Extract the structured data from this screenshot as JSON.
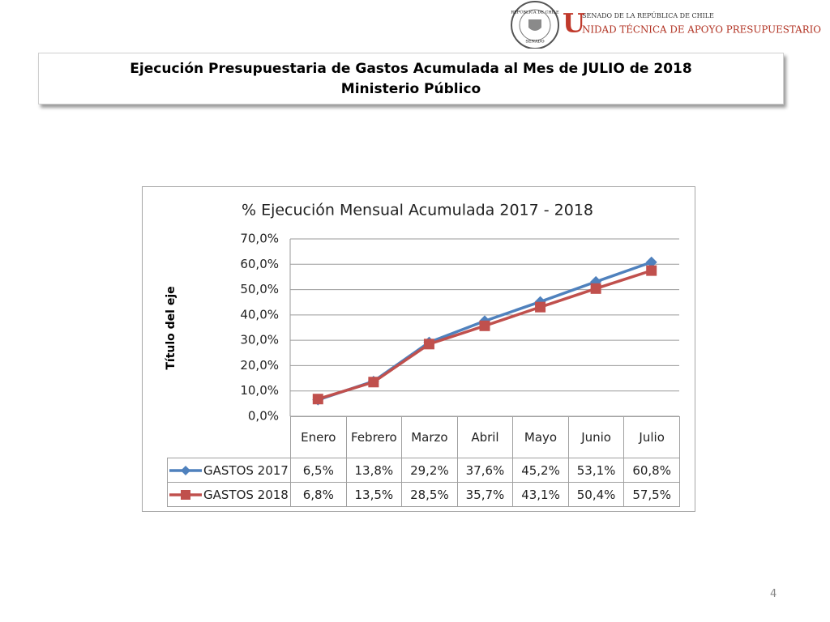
{
  "header": {
    "seal_top": "REPÚBLICA DE CHILE",
    "seal_bottom": "SENADO",
    "logo_small": "SENADO DE LA REPÚBLICA DE CHILE",
    "logo_initial": "U",
    "logo_rest": "NIDAD TÉCNICA DE APOYO PRESUPUESTARIO"
  },
  "slide_title": [
    "Ejecución Presupuestaria de Gastos Acumulada al Mes de JULIO de 2018",
    "Ministerio Público"
  ],
  "chart_data": {
    "type": "line",
    "title": "% Ejecución Mensual Acumulada 2017 - 2018",
    "y_label": "Título del eje",
    "categories": [
      "Enero",
      "Febrero",
      "Marzo",
      "Abril",
      "Mayo",
      "Junio",
      "Julio"
    ],
    "series": [
      {
        "name": "GASTOS 2017",
        "color": "#4f81bd",
        "marker": "diamond",
        "values": [
          6.5,
          13.8,
          29.2,
          37.6,
          45.2,
          53.1,
          60.8
        ],
        "value_labels": [
          "6,5%",
          "13,8%",
          "29,2%",
          "37,6%",
          "45,2%",
          "53,1%",
          "60,8%"
        ]
      },
      {
        "name": "GASTOS 2018",
        "color": "#c0504d",
        "marker": "square",
        "values": [
          6.8,
          13.5,
          28.5,
          35.7,
          43.1,
          50.4,
          57.5
        ],
        "value_labels": [
          "6,8%",
          "13,5%",
          "28,5%",
          "35,7%",
          "43,1%",
          "50,4%",
          "57,5%"
        ]
      }
    ],
    "ylim": [
      0,
      70
    ],
    "yticks": [
      {
        "value": 0,
        "label": "0,0%"
      },
      {
        "value": 10,
        "label": "10,0%"
      },
      {
        "value": 20,
        "label": "20,0%"
      },
      {
        "value": 30,
        "label": "30,0%"
      },
      {
        "value": 40,
        "label": "40,0%"
      },
      {
        "value": 50,
        "label": "50,0%"
      },
      {
        "value": 60,
        "label": "60,0%"
      },
      {
        "value": 70,
        "label": "70,0%"
      }
    ],
    "grid": true
  },
  "page_number": "4"
}
